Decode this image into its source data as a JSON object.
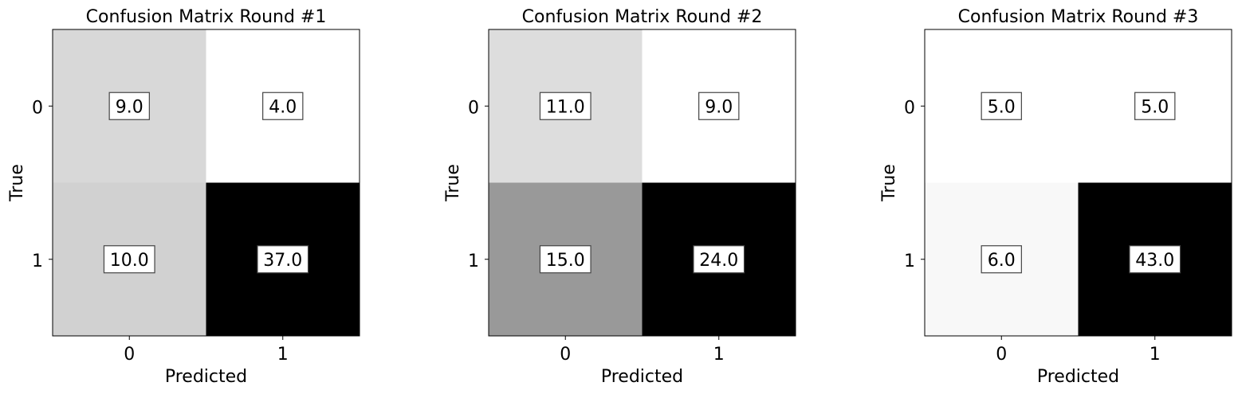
{
  "chart_data": [
    {
      "type": "heatmap",
      "title": "Confusion Matrix Round #1",
      "xlabel": "Predicted",
      "ylabel": "True",
      "x_categories": [
        "0",
        "1"
      ],
      "y_categories": [
        "0",
        "1"
      ],
      "values": [
        [
          9.0,
          4.0
        ],
        [
          10.0,
          37.0
        ]
      ],
      "cell_labels": [
        [
          "9.0",
          "4.0"
        ],
        [
          "10.0",
          "37.0"
        ]
      ],
      "colormap": "gray_r"
    },
    {
      "type": "heatmap",
      "title": "Confusion Matrix Round #2",
      "xlabel": "Predicted",
      "ylabel": "True",
      "x_categories": [
        "0",
        "1"
      ],
      "y_categories": [
        "0",
        "1"
      ],
      "values": [
        [
          11.0,
          9.0
        ],
        [
          15.0,
          24.0
        ]
      ],
      "cell_labels": [
        [
          "11.0",
          "9.0"
        ],
        [
          "15.0",
          "24.0"
        ]
      ],
      "colormap": "gray_r"
    },
    {
      "type": "heatmap",
      "title": "Confusion Matrix Round #3",
      "xlabel": "Predicted",
      "ylabel": "True",
      "x_categories": [
        "0",
        "1"
      ],
      "y_categories": [
        "0",
        "1"
      ],
      "values": [
        [
          5.0,
          5.0
        ],
        [
          6.0,
          43.0
        ]
      ],
      "cell_labels": [
        [
          "5.0",
          "5.0"
        ],
        [
          "6.0",
          "43.0"
        ]
      ],
      "colormap": "gray_r"
    }
  ]
}
